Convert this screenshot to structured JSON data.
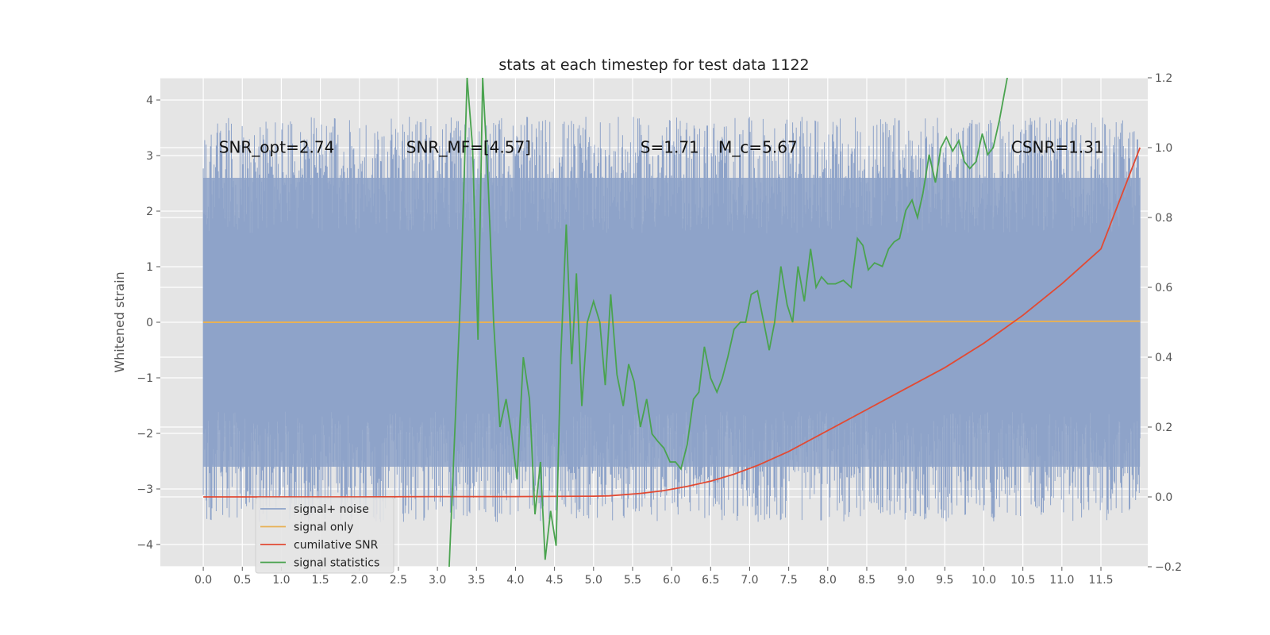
{
  "chart_data": {
    "type": "line",
    "title": "stats at each timestep for test data 1122",
    "ylabel": "Whitened strain",
    "xlabel": "",
    "xlim": [
      -0.55,
      12.1
    ],
    "ylim": [
      -4.4,
      4.4
    ],
    "y2lim": [
      -0.2,
      1.2
    ],
    "grid": true,
    "x_ticks": [
      "0.0",
      "0.5",
      "1.0",
      "1.5",
      "2.0",
      "2.5",
      "3.0",
      "3.5",
      "4.0",
      "4.5",
      "5.0",
      "5.5",
      "6.0",
      "6.5",
      "7.0",
      "7.5",
      "8.0",
      "8.5",
      "9.0",
      "9.5",
      "10.0",
      "10.5",
      "11.0",
      "11.5"
    ],
    "y_ticks": [
      "4",
      "3",
      "2",
      "1",
      "0",
      "−1",
      "−2",
      "−3",
      "−4"
    ],
    "y2_ticks": [
      "1.2",
      "1.0",
      "0.8",
      "0.6",
      "0.4",
      "0.2",
      "0.0",
      "−0.2"
    ],
    "annotations": [
      {
        "text": "SNR_opt=2.74",
        "x": 0.2,
        "y": 3.15
      },
      {
        "text": "SNR_MF=[4.57]",
        "x": 2.6,
        "y": 3.15
      },
      {
        "text": "S=1.71",
        "x": 5.6,
        "y": 3.15
      },
      {
        "text": "M_c=5.67",
        "x": 6.6,
        "y": 3.15
      },
      {
        "text": "CSNR=1.31",
        "x": 10.35,
        "y": 3.15
      }
    ],
    "legend": {
      "placement": "lower-left",
      "entries": [
        {
          "label": "signal+ noise",
          "color": "#8ea3c9"
        },
        {
          "label": "signal only",
          "color": "#e8b155"
        },
        {
          "label": "cumilative SNR",
          "color": "#e24a33"
        },
        {
          "label": "signal statistics",
          "color": "#4aa34f"
        }
      ]
    },
    "series": [
      {
        "name": "signal+ noise",
        "axis": "left",
        "style": "noise-band",
        "x_range": [
          0,
          12.0
        ],
        "envelope_low": -2.6,
        "envelope_high": 2.6,
        "color": "#8ea3c9"
      },
      {
        "name": "signal only",
        "axis": "left",
        "x": [
          0,
          6.0,
          12.0
        ],
        "y": [
          0,
          0,
          0.02
        ],
        "color": "#e8b155"
      },
      {
        "name": "cumilative SNR",
        "axis": "right",
        "x": [
          0,
          1,
          2,
          3,
          4,
          5,
          5.2,
          5.6,
          5.9,
          6.2,
          6.5,
          6.8,
          7.1,
          7.5,
          8.0,
          8.5,
          9.0,
          9.5,
          10.0,
          10.5,
          11.0,
          11.5,
          12.0
        ],
        "y": [
          0.0,
          0.0,
          0.0,
          0.001,
          0.001,
          0.002,
          0.003,
          0.01,
          0.018,
          0.03,
          0.045,
          0.065,
          0.09,
          0.13,
          0.19,
          0.25,
          0.31,
          0.37,
          0.44,
          0.52,
          0.61,
          0.71,
          1.0
        ],
        "color": "#e24a33"
      },
      {
        "name": "signal statistics",
        "axis": "right",
        "x": [
          3.15,
          3.3,
          3.38,
          3.45,
          3.52,
          3.58,
          3.65,
          3.72,
          3.8,
          3.88,
          3.95,
          4.02,
          4.1,
          4.18,
          4.25,
          4.32,
          4.38,
          4.45,
          4.52,
          4.58,
          4.65,
          4.72,
          4.78,
          4.85,
          4.92,
          5.0,
          5.08,
          5.15,
          5.22,
          5.3,
          5.38,
          5.45,
          5.52,
          5.6,
          5.68,
          5.75,
          5.82,
          5.9,
          5.98,
          6.05,
          6.12,
          6.2,
          6.28,
          6.35,
          6.42,
          6.5,
          6.58,
          6.65,
          6.72,
          6.8,
          6.88,
          6.95,
          7.02,
          7.1,
          7.18,
          7.25,
          7.32,
          7.4,
          7.48,
          7.55,
          7.62,
          7.7,
          7.78,
          7.85,
          7.92,
          8.0,
          8.1,
          8.2,
          8.3,
          8.38,
          8.45,
          8.52,
          8.6,
          8.7,
          8.78,
          8.85,
          8.92,
          9.0,
          9.08,
          9.15,
          9.22,
          9.3,
          9.38,
          9.45,
          9.52,
          9.6,
          9.68,
          9.75,
          9.82,
          9.9,
          9.98,
          10.05,
          10.12,
          10.2,
          10.3
        ],
        "y": [
          -0.2,
          0.6,
          1.2,
          1.0,
          0.45,
          1.2,
          0.9,
          0.5,
          0.2,
          0.28,
          0.18,
          0.05,
          0.4,
          0.28,
          -0.05,
          0.1,
          -0.18,
          -0.04,
          -0.14,
          0.4,
          0.78,
          0.38,
          0.64,
          0.26,
          0.5,
          0.56,
          0.5,
          0.32,
          0.58,
          0.35,
          0.26,
          0.38,
          0.33,
          0.2,
          0.28,
          0.18,
          0.16,
          0.14,
          0.1,
          0.1,
          0.08,
          0.15,
          0.28,
          0.3,
          0.43,
          0.34,
          0.3,
          0.34,
          0.4,
          0.48,
          0.5,
          0.5,
          0.58,
          0.59,
          0.5,
          0.42,
          0.5,
          0.66,
          0.55,
          0.5,
          0.66,
          0.56,
          0.71,
          0.6,
          0.63,
          0.61,
          0.61,
          0.62,
          0.6,
          0.74,
          0.72,
          0.65,
          0.67,
          0.66,
          0.71,
          0.73,
          0.74,
          0.82,
          0.85,
          0.8,
          0.87,
          0.98,
          0.9,
          1.0,
          1.03,
          0.99,
          1.02,
          0.96,
          0.94,
          0.96,
          1.04,
          0.98,
          1.0,
          1.08,
          1.2
        ],
        "color": "#4aa34f"
      }
    ]
  }
}
